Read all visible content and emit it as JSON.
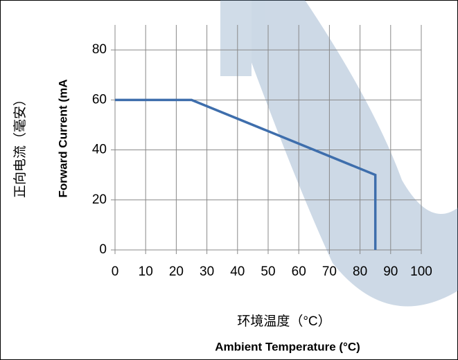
{
  "chart_data": {
    "type": "line",
    "y_label": [
      "正向电流（毫安）",
      "Forward Current (mA"
    ],
    "x_label": [
      "环境温度（°C）",
      "Ambient Temperature (°C)"
    ],
    "series": [
      {
        "color": "#3e6eac",
        "x": [
          0,
          25,
          85,
          85
        ],
        "values": [
          60,
          60,
          30,
          0
        ]
      }
    ],
    "xlim": [
      0,
      100
    ],
    "xticks": [
      0,
      10,
      20,
      30,
      40,
      50,
      60,
      70,
      80,
      90,
      100
    ],
    "ylim": [
      0,
      90
    ],
    "yticks": [
      0,
      20,
      40,
      60,
      80
    ],
    "grid": true
  }
}
